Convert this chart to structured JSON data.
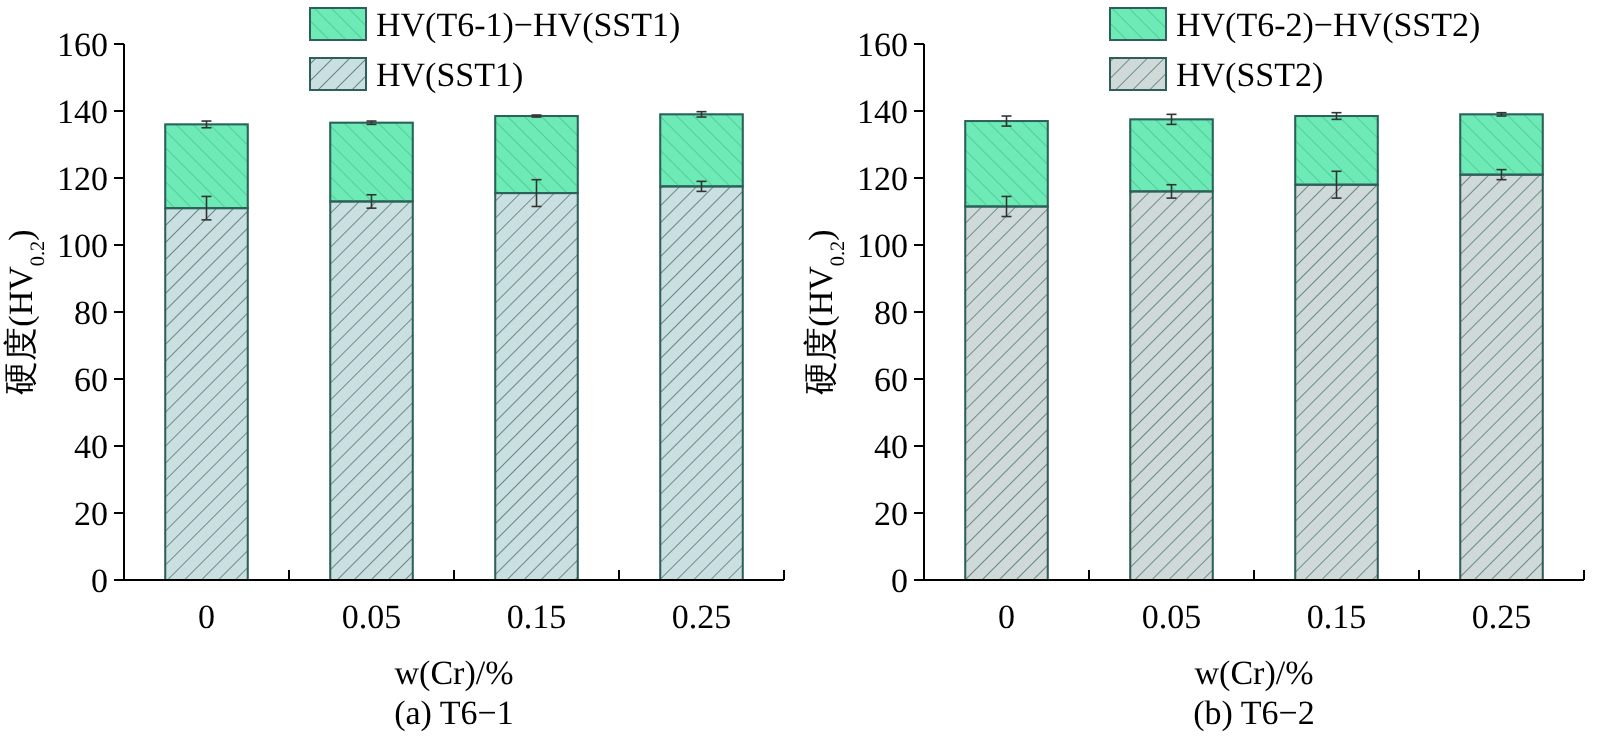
{
  "chart_data": [
    {
      "type": "bar",
      "title": "(a) T6−1",
      "xlabel": "w(Cr)/%",
      "ylabel": "硬度(HV$_{0.2}$)",
      "categories": [
        "0",
        "0.05",
        "0.15",
        "0.25"
      ],
      "stacked": true,
      "legend": "top right",
      "ylim": [
        0,
        160
      ],
      "yticks": [
        0,
        20,
        40,
        60,
        80,
        100,
        120,
        140,
        160
      ],
      "series": [
        {
          "name": "HV(SST1)",
          "color": "#c9dfe0",
          "values": [
            111,
            113,
            115.5,
            117.5
          ],
          "errors": [
            3.5,
            2,
            4,
            1.5
          ]
        },
        {
          "name": "HV(T6-1)−HV(SST1)",
          "color": "#6eeab6",
          "values": [
            25,
            23.5,
            23,
            21.5
          ],
          "errors": [
            1,
            0.5,
            0.3,
            0.8
          ]
        }
      ]
    },
    {
      "type": "bar",
      "title": "(b) T6−2",
      "xlabel": "w(Cr)/%",
      "ylabel": "硬度(HV$_{0.2}$)",
      "categories": [
        "0",
        "0.05",
        "0.15",
        "0.25"
      ],
      "stacked": true,
      "legend": "top right",
      "ylim": [
        0,
        160
      ],
      "yticks": [
        0,
        20,
        40,
        60,
        80,
        100,
        120,
        140,
        160
      ],
      "series": [
        {
          "name": "HV(SST2)",
          "color": "#cfd9d8",
          "values": [
            111.5,
            116,
            118,
            121
          ],
          "errors": [
            3,
            2,
            4,
            1.5
          ]
        },
        {
          "name": "HV(T6-2)−HV(SST2)",
          "color": "#6eeab6",
          "values": [
            25.5,
            21.5,
            20.5,
            18
          ],
          "errors": [
            1.5,
            1.5,
            1,
            0.5
          ]
        }
      ]
    }
  ]
}
